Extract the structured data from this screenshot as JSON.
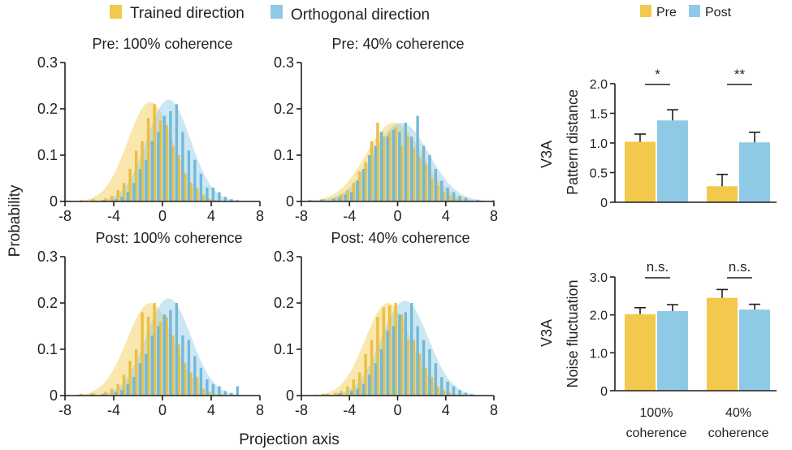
{
  "legend_left": {
    "entries": [
      {
        "label": "Trained direction",
        "color": "#f2c94c"
      },
      {
        "label": "Orthogonal direction",
        "color": "#8ecae6"
      }
    ]
  },
  "legend_right": {
    "entries": [
      {
        "label": "Pre",
        "color": "#f2c94c"
      },
      {
        "label": "Post",
        "color": "#8ecae6"
      }
    ]
  },
  "shared_axes": {
    "ylabel": "Probability",
    "xlabel": "Projection axis"
  },
  "colors": {
    "trained": "#f2c94c",
    "orthogonal": "#8ecae6",
    "trained_bar": "#e9bf45",
    "orthogonal_bar": "#73b9d6",
    "axis": "#231f20"
  },
  "chart_data": [
    {
      "type": "bar",
      "title": "Pre: 100% coherence",
      "xlim": [
        -8,
        8
      ],
      "ylim": [
        0,
        0.3
      ],
      "xticks": [
        "-8",
        "-4",
        "0",
        "4",
        "8"
      ],
      "yticks": [
        "0",
        "0.1",
        "0.2",
        "0.3"
      ],
      "fits": [
        {
          "series": "Trained direction",
          "mean": -1.0,
          "sd": 1.85,
          "peak": 0.215
        },
        {
          "series": "Orthogonal direction",
          "mean": 0.5,
          "sd": 1.8,
          "peak": 0.22
        }
      ],
      "series": [
        {
          "name": "Trained direction",
          "x": [
            -8.5,
            -7.5,
            -6.5,
            -5.5,
            -4.5,
            -4,
            -3.5,
            -3,
            -2.5,
            -2,
            -1.5,
            -1,
            -0.5,
            0,
            0.5,
            1,
            1.5,
            2,
            2.5,
            3,
            3.5,
            4,
            4.5,
            5,
            5.5,
            6,
            7
          ],
          "values": [
            0.002,
            0.002,
            0.003,
            0.005,
            0.007,
            0.012,
            0.025,
            0.04,
            0.07,
            0.11,
            0.13,
            0.18,
            0.21,
            0.175,
            0.165,
            0.12,
            0.1,
            0.06,
            0.04,
            0.03,
            0.015,
            0.005,
            0.003,
            0.001,
            0.001,
            0.001,
            0.001
          ]
        },
        {
          "name": "Orthogonal direction",
          "x": [
            -8,
            -6,
            -5,
            -4,
            -3.5,
            -3,
            -2.5,
            -2,
            -1.5,
            -1,
            -0.5,
            0,
            0.5,
            1,
            1.5,
            2,
            2.5,
            3,
            3.5,
            4,
            4.5,
            5,
            5.5,
            6,
            7.5
          ],
          "values": [
            0.002,
            0.002,
            0.003,
            0.005,
            0.01,
            0.02,
            0.04,
            0.07,
            0.09,
            0.13,
            0.15,
            0.185,
            0.195,
            0.21,
            0.15,
            0.11,
            0.09,
            0.06,
            0.03,
            0.03,
            0.02,
            0.01,
            0.005,
            0.003,
            0.001
          ]
        }
      ]
    },
    {
      "type": "bar",
      "title": "Pre: 40% coherence",
      "xlim": [
        -8,
        8
      ],
      "ylim": [
        0,
        0.3
      ],
      "xticks": [
        "-8",
        "-4",
        "0",
        "4",
        "8"
      ],
      "yticks": [
        "0",
        "0.1",
        "0.2",
        "0.3"
      ],
      "fits": [
        {
          "series": "Trained direction",
          "mean": -0.3,
          "sd": 2.3,
          "peak": 0.17
        },
        {
          "series": "Orthogonal direction",
          "mean": 0.3,
          "sd": 2.3,
          "peak": 0.17
        }
      ],
      "series": [
        {
          "name": "Trained direction",
          "x": [
            -8,
            -7,
            -6,
            -5,
            -4.5,
            -4,
            -3.5,
            -3,
            -2.5,
            -2,
            -1.5,
            -1,
            -0.5,
            0,
            0.5,
            1,
            1.5,
            2,
            2.5,
            3,
            3.5,
            4,
            4.5,
            5,
            6,
            7
          ],
          "values": [
            0.005,
            0.003,
            0.005,
            0.008,
            0.015,
            0.025,
            0.04,
            0.065,
            0.085,
            0.13,
            0.17,
            0.14,
            0.15,
            0.16,
            0.12,
            0.14,
            0.115,
            0.095,
            0.08,
            0.05,
            0.035,
            0.02,
            0.012,
            0.006,
            0.003,
            0.002
          ]
        },
        {
          "name": "Orthogonal direction",
          "x": [
            -7.5,
            -6.5,
            -5.5,
            -5,
            -4.5,
            -4,
            -3.5,
            -3,
            -2.5,
            -2,
            -1.5,
            -1,
            -0.5,
            0,
            0.5,
            1,
            1.5,
            2,
            2.5,
            3,
            3.5,
            4,
            4.5,
            5,
            5.5,
            6.5,
            7.8
          ],
          "values": [
            0.003,
            0.004,
            0.006,
            0.01,
            0.015,
            0.02,
            0.045,
            0.07,
            0.1,
            0.12,
            0.15,
            0.14,
            0.155,
            0.15,
            0.17,
            0.14,
            0.185,
            0.12,
            0.1,
            0.07,
            0.045,
            0.03,
            0.02,
            0.012,
            0.008,
            0.004,
            0.003
          ]
        }
      ]
    },
    {
      "type": "bar",
      "title": "Post: 100% coherence",
      "xlim": [
        -8,
        8
      ],
      "ylim": [
        0,
        0.3
      ],
      "xticks": [
        "-8",
        "-4",
        "0",
        "4",
        "8"
      ],
      "yticks": [
        "0",
        "0.1",
        "0.2",
        "0.3"
      ],
      "fits": [
        {
          "series": "Trained direction",
          "mean": -1.0,
          "sd": 1.9,
          "peak": 0.2
        },
        {
          "series": "Orthogonal direction",
          "mean": 0.5,
          "sd": 1.85,
          "peak": 0.21
        }
      ],
      "series": [
        {
          "name": "Trained direction",
          "x": [
            -8.5,
            -6.5,
            -5.5,
            -4.5,
            -4,
            -3.5,
            -3,
            -2.5,
            -2,
            -1.5,
            -1,
            -0.5,
            0,
            0.5,
            1,
            1.5,
            2,
            2.5,
            3,
            3.5,
            4,
            5
          ],
          "values": [
            0.003,
            0.004,
            0.005,
            0.008,
            0.015,
            0.025,
            0.045,
            0.075,
            0.1,
            0.18,
            0.17,
            0.2,
            0.16,
            0.17,
            0.13,
            0.11,
            0.07,
            0.05,
            0.04,
            0.015,
            0.008,
            0.003
          ]
        },
        {
          "name": "Orthogonal direction",
          "x": [
            -7,
            -6,
            -5,
            -4,
            -3.5,
            -3,
            -2.5,
            -2,
            -1.5,
            -1,
            -0.5,
            0,
            0.5,
            1,
            1.5,
            2,
            2.5,
            3,
            3.5,
            4,
            4.5,
            5,
            5.5,
            6,
            7.5
          ],
          "values": [
            0.002,
            0.003,
            0.004,
            0.008,
            0.012,
            0.025,
            0.04,
            0.07,
            0.09,
            0.13,
            0.15,
            0.175,
            0.185,
            0.2,
            0.13,
            0.12,
            0.085,
            0.06,
            0.035,
            0.025,
            0.02,
            0.01,
            0.006,
            0.02,
            0.001
          ]
        }
      ]
    },
    {
      "type": "bar",
      "title": "Post: 40% coherence",
      "xlim": [
        -8,
        8
      ],
      "ylim": [
        0,
        0.3
      ],
      "xticks": [
        "-8",
        "-4",
        "0",
        "4",
        "8"
      ],
      "yticks": [
        "0",
        "0.1",
        "0.2",
        "0.3"
      ],
      "fits": [
        {
          "series": "Trained direction",
          "mean": -0.8,
          "sd": 1.9,
          "peak": 0.2
        },
        {
          "series": "Orthogonal direction",
          "mean": 0.6,
          "sd": 1.95,
          "peak": 0.205
        }
      ],
      "series": [
        {
          "name": "Trained direction",
          "x": [
            -8,
            -6,
            -5,
            -4.5,
            -4,
            -3.5,
            -3,
            -2.5,
            -2,
            -1.5,
            -1,
            -0.5,
            0,
            0.5,
            1,
            1.5,
            2,
            2.5,
            3,
            3.5,
            4,
            4.5,
            5.5
          ],
          "values": [
            0.003,
            0.004,
            0.006,
            0.01,
            0.02,
            0.035,
            0.05,
            0.09,
            0.12,
            0.17,
            0.19,
            0.195,
            0.2,
            0.175,
            0.12,
            0.12,
            0.09,
            0.06,
            0.04,
            0.02,
            0.012,
            0.006,
            0.003
          ]
        },
        {
          "name": "Orthogonal direction",
          "x": [
            -7,
            -6,
            -5,
            -4,
            -3.5,
            -3,
            -2.5,
            -2,
            -1.5,
            -1,
            -0.5,
            0,
            0.5,
            1,
            1.5,
            2,
            2.5,
            3,
            3.5,
            4,
            4.5,
            5,
            5.5,
            6
          ],
          "values": [
            0.002,
            0.003,
            0.005,
            0.01,
            0.015,
            0.025,
            0.045,
            0.07,
            0.1,
            0.14,
            0.15,
            0.175,
            0.18,
            0.2,
            0.15,
            0.12,
            0.1,
            0.07,
            0.04,
            0.03,
            0.02,
            0.012,
            0.006,
            0.003
          ]
        }
      ]
    },
    {
      "type": "bar",
      "title": "",
      "region_label": "V3A",
      "ylabel": "Pattern distance",
      "ylim": [
        0,
        2.0
      ],
      "yticks": [
        "0",
        "0.5",
        "1.0",
        "1.5",
        "2.0"
      ],
      "categories": [
        "100% coherence",
        "40% coherence"
      ],
      "series": [
        {
          "name": "Pre",
          "values": [
            1.02,
            0.27
          ],
          "error": [
            0.13,
            0.2
          ]
        },
        {
          "name": "Post",
          "values": [
            1.38,
            1.01
          ],
          "error": [
            0.18,
            0.17
          ]
        }
      ],
      "significance": [
        "*",
        "**"
      ]
    },
    {
      "type": "bar",
      "title": "",
      "region_label": "V3A",
      "ylabel": "Noise fluctuation",
      "ylim": [
        0,
        3.0
      ],
      "yticks": [
        "0",
        "1.0",
        "2.0",
        "3.0"
      ],
      "categories": [
        "100% coherence",
        "40% coherence"
      ],
      "category_lines": [
        [
          "100%",
          "coherence"
        ],
        [
          "40%",
          "coherence"
        ]
      ],
      "series": [
        {
          "name": "Pre",
          "values": [
            2.02,
            2.45
          ],
          "error": [
            0.17,
            0.22
          ]
        },
        {
          "name": "Post",
          "values": [
            2.1,
            2.14
          ],
          "error": [
            0.17,
            0.14
          ]
        }
      ],
      "significance": [
        "n.s.",
        "n.s."
      ]
    }
  ]
}
